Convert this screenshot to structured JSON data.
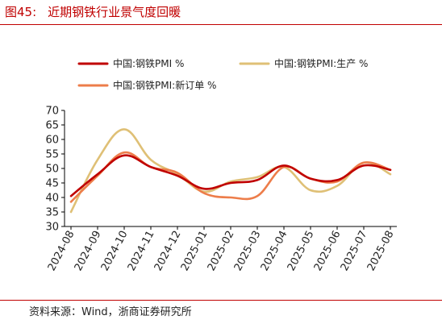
{
  "figure": {
    "number": "图45:",
    "title": "近期钢铁行业景气度回暖",
    "source": "资料来源：Wind，浙商证券研究所"
  },
  "chart_data": {
    "type": "line",
    "categories": [
      "2024-08",
      "2024-09",
      "2024-10",
      "2024-11",
      "2024-12",
      "2025-01",
      "2025-02",
      "2025-03",
      "2025-04",
      "2025-05",
      "2025-06",
      "2025-07",
      "2025-08"
    ],
    "ylim": [
      30,
      70
    ],
    "yticks": [
      30,
      35,
      40,
      45,
      50,
      55,
      60,
      65,
      70
    ],
    "legend_position": "top",
    "series": [
      {
        "name": "中国:钢铁PMI %",
        "color": "#c00000",
        "values": [
          40.5,
          48.0,
          54.5,
          50.5,
          47.5,
          43.0,
          45.0,
          46.0,
          51.0,
          46.5,
          46.0,
          51.0,
          49.5
        ]
      },
      {
        "name": "中国:钢铁PMI:生产 %",
        "color": "#dfc076",
        "values": [
          35.0,
          53.0,
          63.5,
          53.0,
          48.0,
          42.0,
          45.5,
          47.0,
          50.5,
          42.5,
          44.0,
          52.0,
          48.0
        ]
      },
      {
        "name": "中国:钢铁PMI:新订单 %",
        "color": "#ed7d4a",
        "values": [
          38.5,
          47.5,
          55.5,
          50.5,
          48.5,
          41.5,
          40.0,
          40.5,
          50.5,
          46.5,
          45.5,
          52.0,
          49.5
        ]
      }
    ]
  }
}
